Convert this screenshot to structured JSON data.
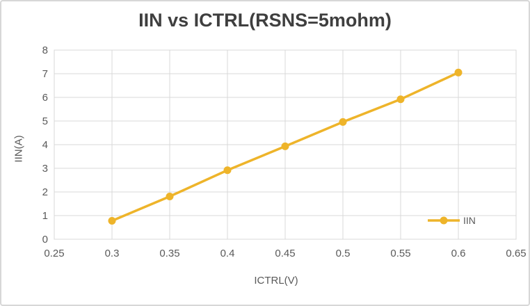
{
  "chart_data": {
    "type": "line",
    "title": "IIN vs ICTRL(RSNS=5mohm)",
    "xlabel": "ICTRL(V)",
    "ylabel": "IIN(A)",
    "x": [
      0.3,
      0.35,
      0.4,
      0.45,
      0.5,
      0.55,
      0.6
    ],
    "series": [
      {
        "name": "IIN",
        "values": [
          0.78,
          1.81,
          2.92,
          3.93,
          4.96,
          5.92,
          7.05
        ]
      }
    ],
    "xlim": [
      0.25,
      0.65
    ],
    "ylim": [
      0,
      8
    ],
    "xticks": [
      0.25,
      0.3,
      0.35,
      0.4,
      0.45,
      0.5,
      0.55,
      0.6,
      0.65
    ],
    "xtick_labels": [
      "0.25",
      "0.3",
      "0.35",
      "0.4",
      "0.45",
      "0.5",
      "0.55",
      "0.6",
      "0.65"
    ],
    "yticks": [
      0,
      1,
      2,
      3,
      4,
      5,
      6,
      7,
      8
    ],
    "ytick_labels": [
      "0",
      "1",
      "2",
      "3",
      "4",
      "5",
      "6",
      "7",
      "8"
    ],
    "grid": true,
    "legend": [
      "IIN"
    ],
    "legend_position": "inside-right",
    "colors": {
      "series": "#EEB42A",
      "grid": "#D9D9D9",
      "plot_border": "#D9D9D9",
      "axis_text": "#595959",
      "title_text": "#3F3F3F",
      "frame_border": "#D7D7D7",
      "background": "#FFFFFF"
    }
  }
}
